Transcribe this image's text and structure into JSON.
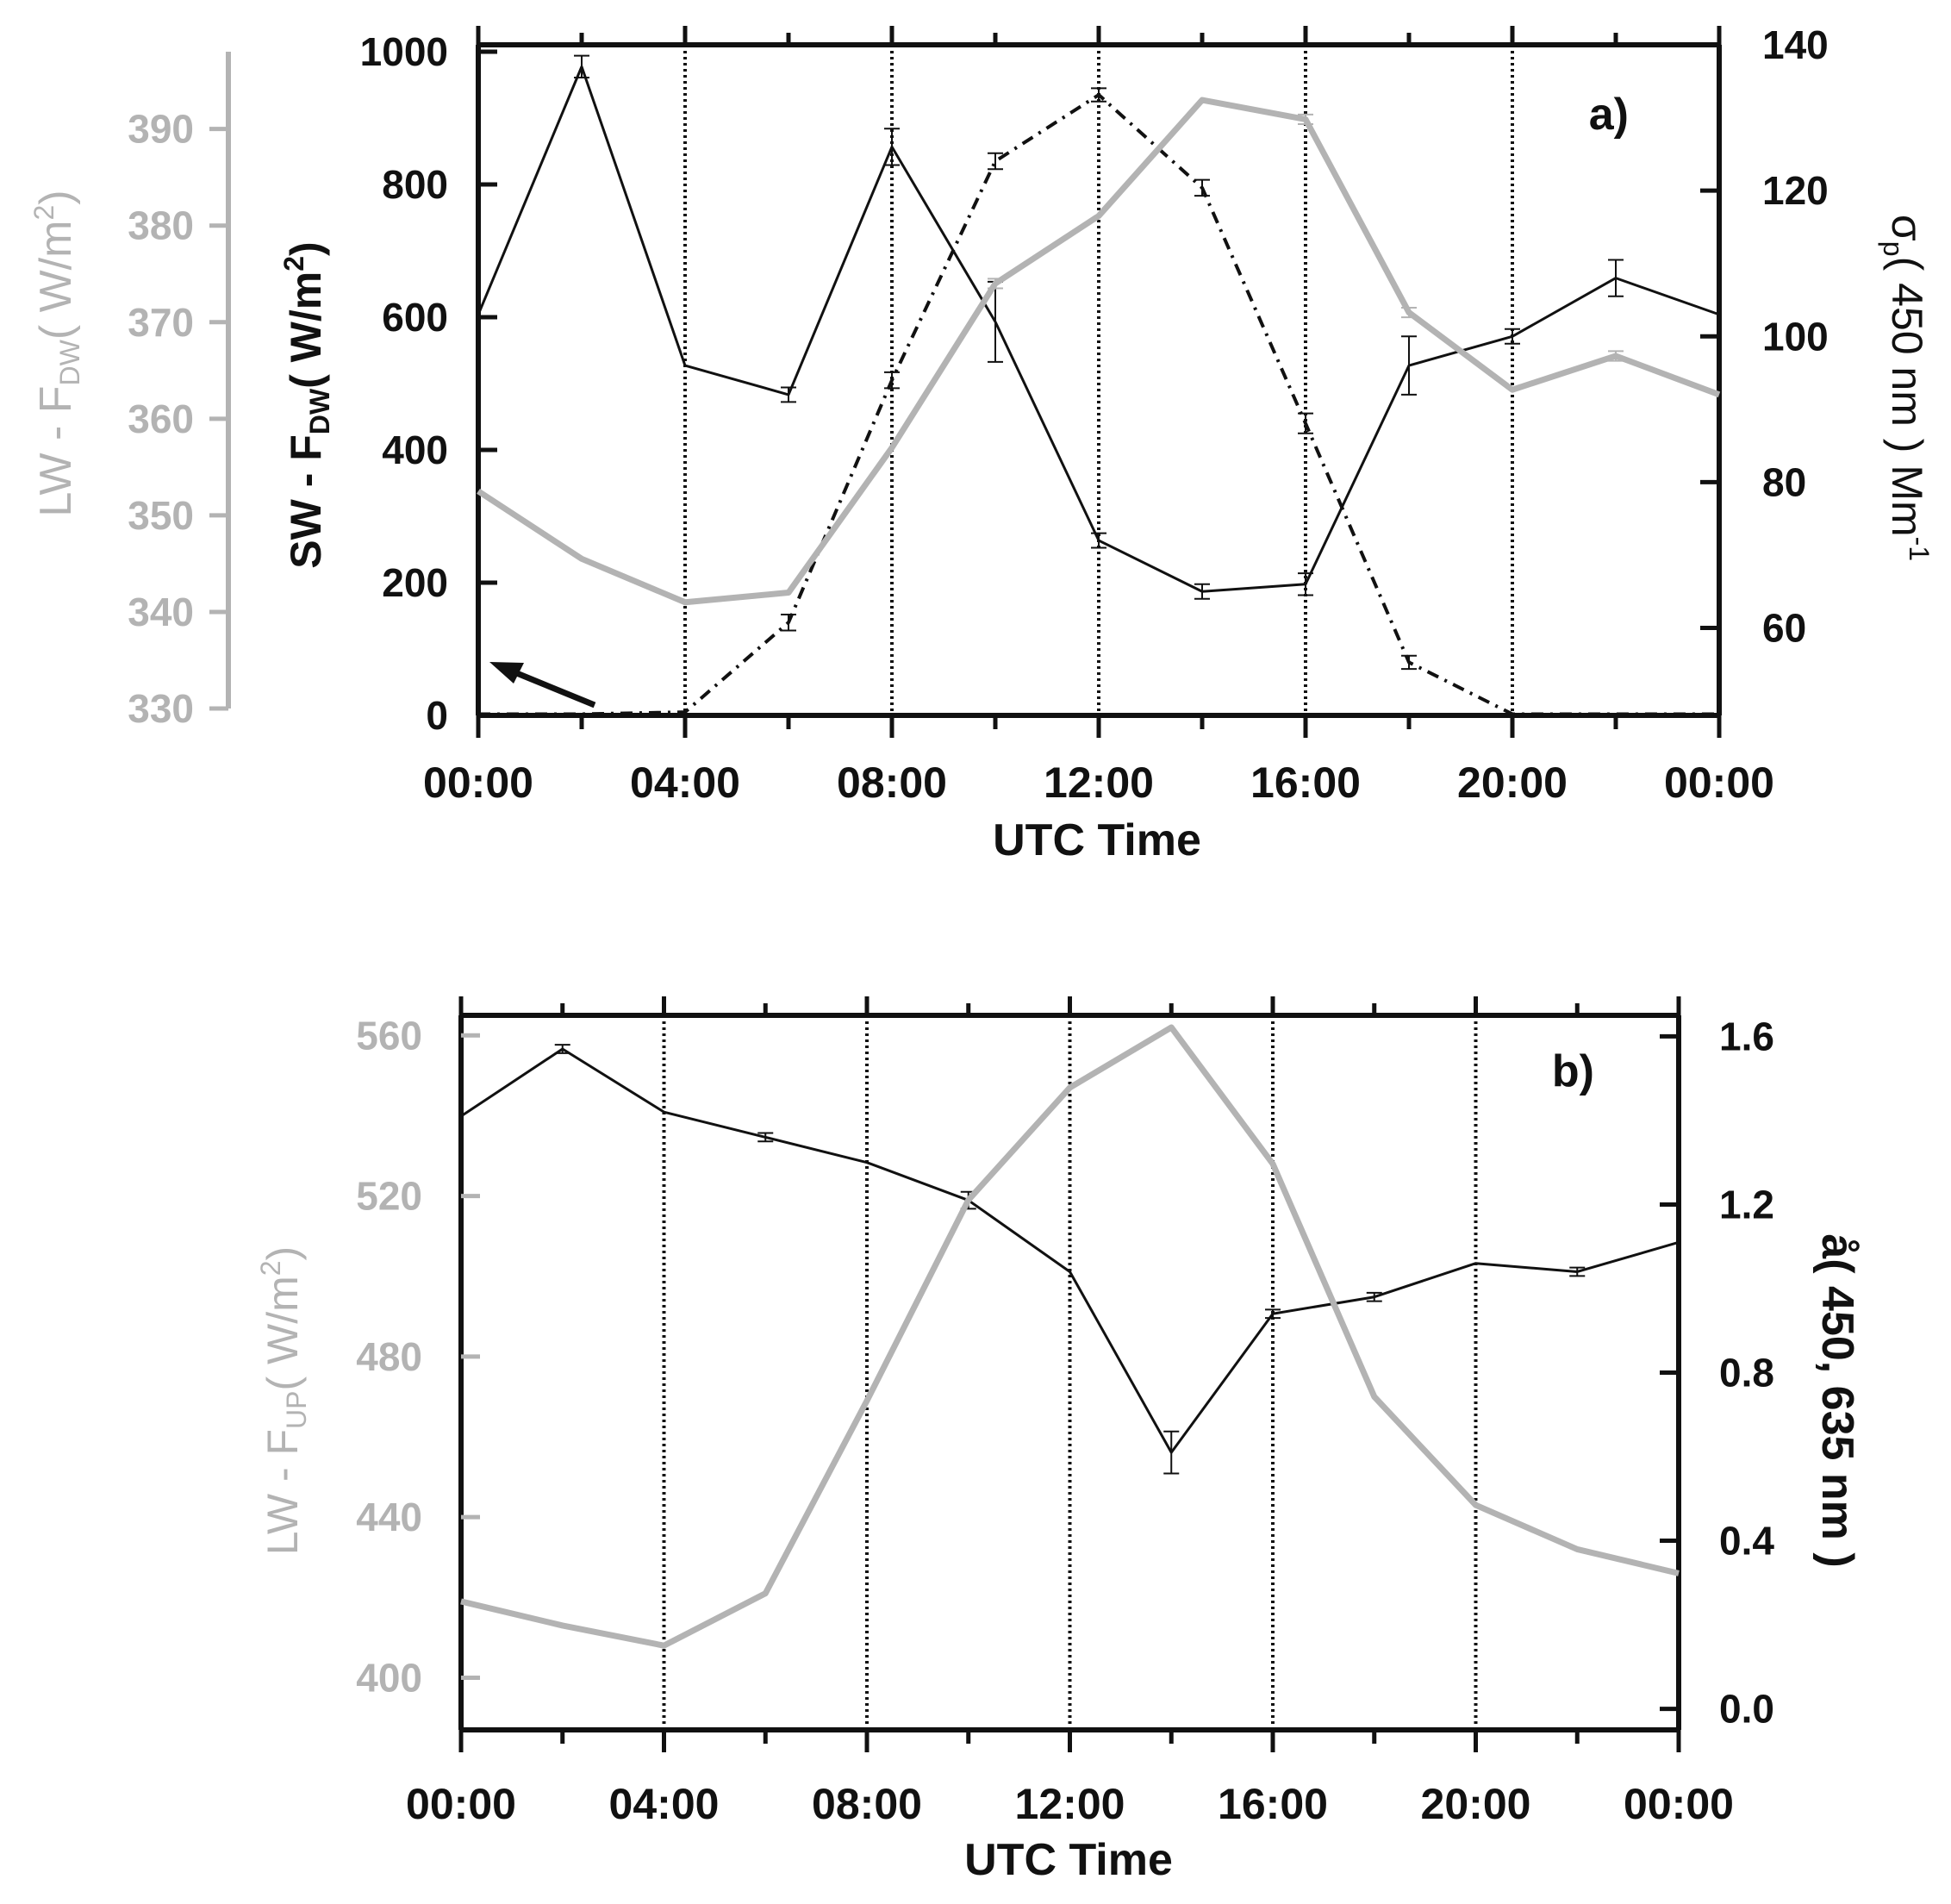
{
  "colors": {
    "black": "#111111",
    "gray": "#b3b3b3",
    "grid": "#111111"
  },
  "chart_data": [
    {
      "type": "line",
      "panel_label": "a)",
      "xlabel": "UTC Time",
      "x_ticks": [
        "00:00",
        "04:00",
        "08:00",
        "12:00",
        "16:00",
        "20:00",
        "00:00"
      ],
      "x_hours": [
        0,
        2,
        4,
        6,
        8,
        10,
        12,
        14,
        16,
        18,
        20,
        22,
        24
      ],
      "grid": "vertical dotted every 4 h",
      "axes": {
        "sw": {
          "label_main": "SW - F",
          "label_sub": "DW",
          "label_unit": "( W/m",
          "label_sup": "2",
          "label_end": ")",
          "ylim": [
            0,
            1000
          ],
          "ticks": [
            "0",
            "200",
            "400",
            "600",
            "800",
            "1000"
          ]
        },
        "lw": {
          "label_main": "LW - F",
          "label_sub": "DW",
          "label_unit": "( W/m",
          "label_sup": "2",
          "label_end": ")",
          "ylim": [
            330,
            398
          ],
          "ticks": [
            "330",
            "340",
            "350",
            "360",
            "370",
            "380",
            "390"
          ]
        },
        "sigma": {
          "label_main": "σ",
          "label_sub": "p",
          "label_unit": "( 450 nm ) Mm",
          "label_sup": "-1",
          "ylim": [
            48,
            140
          ],
          "ticks": [
            "60",
            "80",
            "100",
            "120",
            "140"
          ]
        }
      },
      "series": [
        {
          "axis": "sigma",
          "style": "solid-black",
          "values": [
            103,
            137,
            96,
            92,
            126,
            102,
            72,
            65,
            66,
            96,
            100,
            108,
            103
          ],
          "errors": [
            0,
            1.5,
            0,
            1,
            2.5,
            5.5,
            1,
            1,
            1.5,
            4,
            1,
            2.5,
            0
          ]
        },
        {
          "axis": "sw",
          "style": "dashdot-black",
          "values": [
            2,
            2,
            5,
            140,
            505,
            835,
            935,
            795,
            440,
            80,
            2,
            2,
            2
          ],
          "errors": [
            0,
            0,
            0,
            12,
            12,
            12,
            10,
            12,
            15,
            10,
            0,
            0,
            0
          ]
        },
        {
          "axis": "lw",
          "style": "solid-gray",
          "values": [
            352.5,
            345.5,
            341,
            342,
            357,
            374,
            381,
            393,
            391,
            371,
            363,
            366.5,
            362.5
          ],
          "errors": [
            0,
            0,
            0,
            0,
            0,
            0.5,
            0,
            0,
            0.5,
            0.5,
            0,
            0.5,
            0
          ]
        }
      ]
    },
    {
      "type": "line",
      "panel_label": "b)",
      "xlabel": "UTC Time",
      "x_ticks": [
        "00:00",
        "04:00",
        "08:00",
        "12:00",
        "16:00",
        "20:00",
        "00:00"
      ],
      "x_hours": [
        0,
        2,
        4,
        6,
        8,
        10,
        12,
        14,
        16,
        18,
        20,
        22,
        24
      ],
      "grid": "vertical dotted every 4 h",
      "axes": {
        "lw": {
          "label_main": "LW - F",
          "label_sub": "UP",
          "label_unit": "( W/m",
          "label_sup": "2",
          "label_end": ")",
          "ylim": [
            387,
            565
          ],
          "ticks": [
            "400",
            "440",
            "480",
            "520",
            "560"
          ]
        },
        "angstrom": {
          "label": "å( 450, 635 nm )",
          "ylim": [
            -0.05,
            1.65
          ],
          "ticks": [
            "0.0",
            "0.4",
            "0.8",
            "1.2",
            "1.6"
          ]
        }
      },
      "series": [
        {
          "axis": "angstrom",
          "style": "solid-black",
          "values": [
            1.41,
            1.57,
            1.42,
            1.36,
            1.3,
            1.21,
            1.04,
            0.61,
            0.94,
            0.98,
            1.06,
            1.04,
            1.11
          ],
          "errors": [
            0,
            0.01,
            0,
            0.01,
            0,
            0.02,
            0,
            0.05,
            0.01,
            0.01,
            0,
            0.01,
            0
          ]
        },
        {
          "axis": "lw",
          "style": "solid-gray",
          "values": [
            419,
            413,
            408,
            421,
            469,
            519,
            547,
            562,
            528,
            470,
            443,
            432,
            426
          ],
          "errors": [
            0,
            0,
            0,
            0,
            0,
            0,
            0,
            0,
            0,
            0,
            0,
            0,
            0
          ]
        }
      ]
    }
  ]
}
